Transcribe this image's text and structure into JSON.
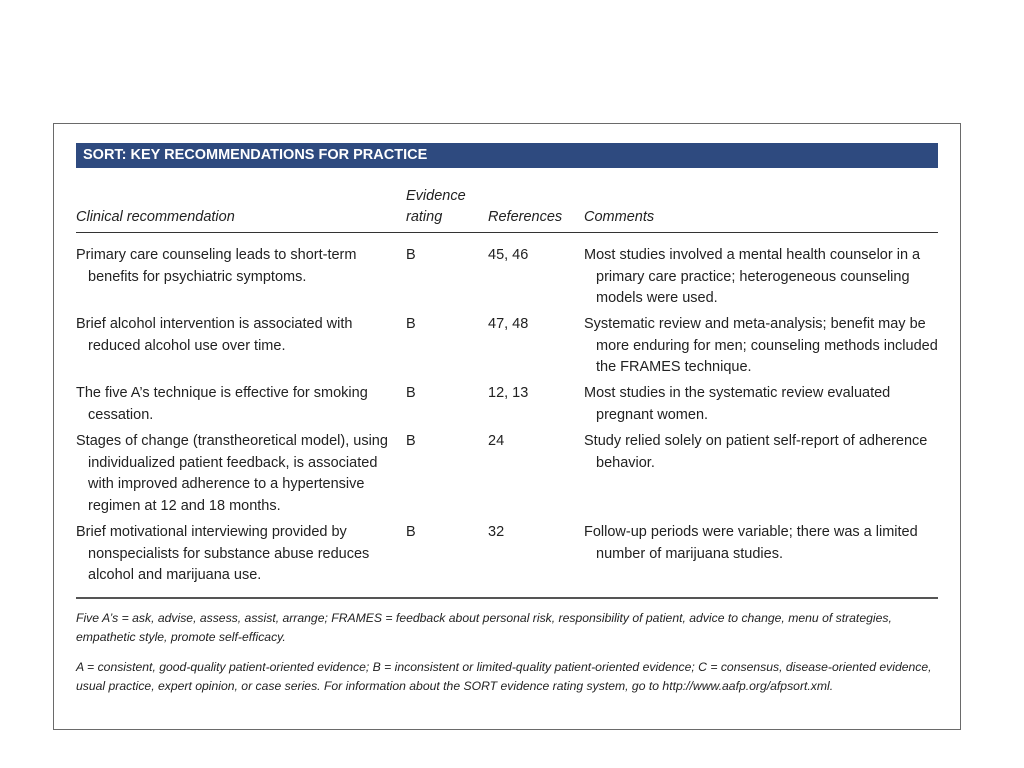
{
  "box_title": "SORT: KEY RECOMMENDATIONS FOR PRACTICE",
  "headers": {
    "recommendation": "Clinical recommendation",
    "rating_line1": "Evidence",
    "rating_line2": "rating",
    "references": "References",
    "comments": "Comments"
  },
  "rows": [
    {
      "recommendation": "Primary care counseling leads to short-term benefits for psychiatric symptoms.",
      "rating": "B",
      "references": "45, 46",
      "comments": "Most studies involved a mental health counselor in a primary care practice; heterogeneous counseling models were used."
    },
    {
      "recommendation": "Brief alcohol intervention is associated with reduced alcohol use over time.",
      "rating": "B",
      "references": "47, 48",
      "comments": "Systematic review and meta-analysis; benefit may be more enduring for men; counseling methods included the FRAMES technique."
    },
    {
      "recommendation": "The five A’s technique is effective for smoking cessation.",
      "rating": "B",
      "references": "12, 13",
      "comments": "Most studies in the systematic review evaluated pregnant women."
    },
    {
      "recommendation": "Stages of change (transtheoretical model), using individualized patient feedback, is associated with improved adherence to a hypertensive regimen at 12 and 18 months.",
      "rating": "B",
      "references": "24",
      "comments": "Study relied solely on patient self-report of adherence behavior."
    },
    {
      "recommendation": "Brief motivational interviewing provided by nonspecialists for substance abuse reduces alcohol and marijuana use.",
      "rating": "B",
      "references": "32",
      "comments": "Follow-up periods were variable; there was a limited number of marijuana studies."
    }
  ],
  "footnote_abbrev": "Five A’s = ask, advise, assess, assist, arrange; FRAMES = feedback about personal risk, responsibility of patient, advice to change, menu of strategies, empathetic style, promote self-efficacy.",
  "footnote_sort": "A = consistent, good-quality patient-oriented evidence; B = inconsistent or limited-quality patient-oriented evidence; C = consensus, disease-oriented evidence, usual practice, expert opinion, or case series. For information about the SORT evidence rating system, go to http://www.aafp.org/afpsort.xml."
}
